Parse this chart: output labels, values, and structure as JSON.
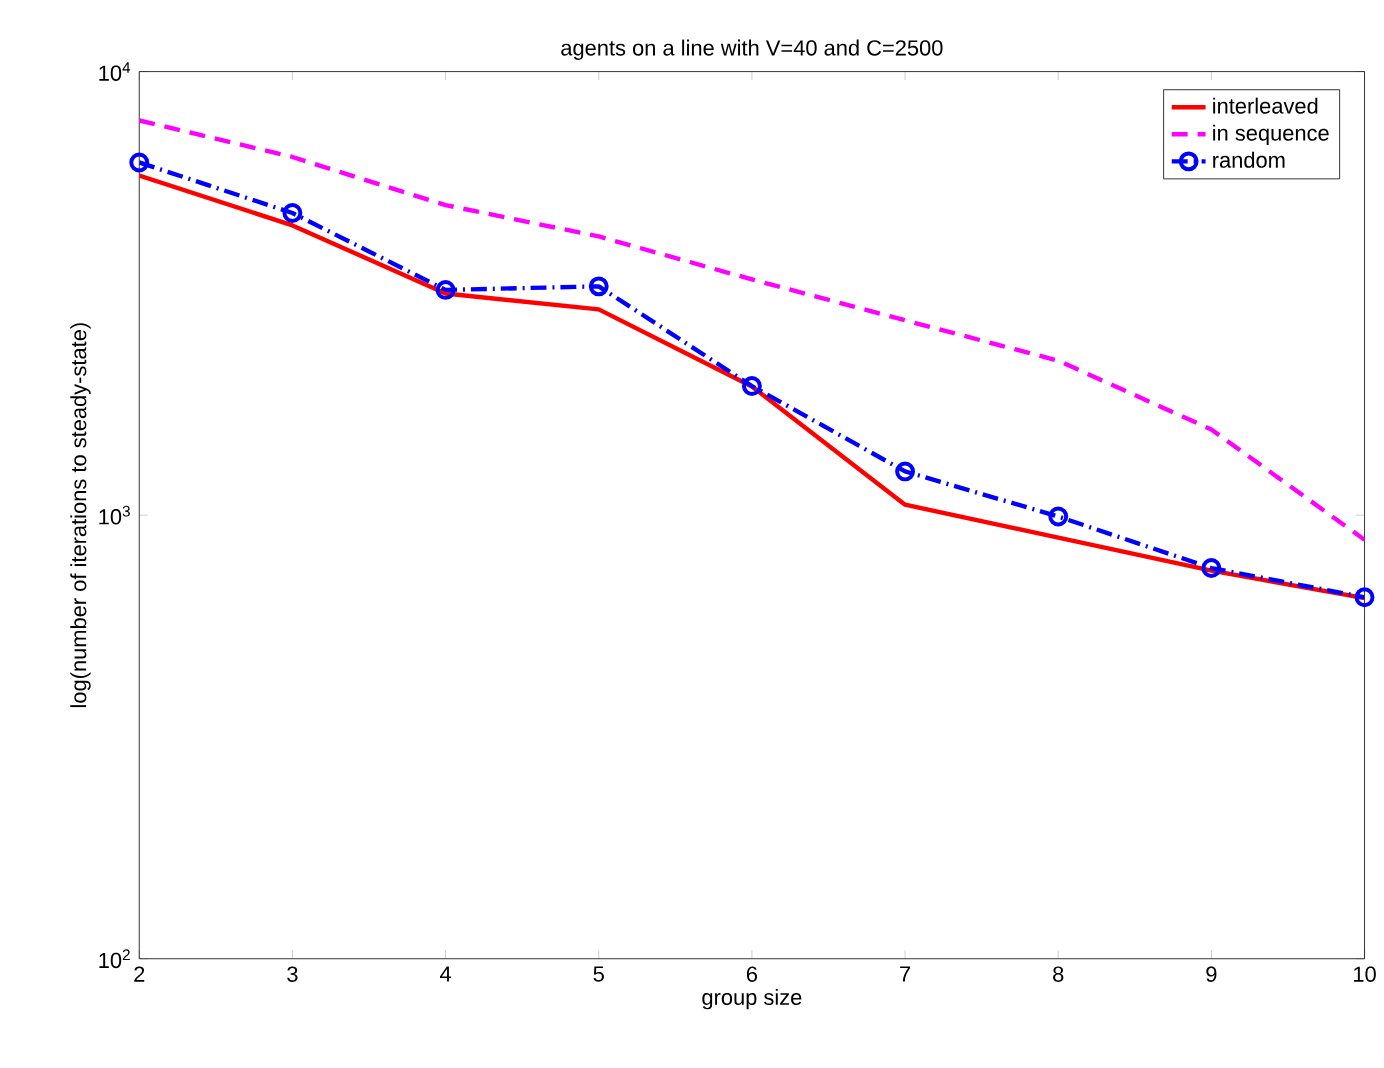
{
  "chart_data": {
    "type": "line",
    "title": "agents on a line with V=40 and C=2500",
    "xlabel": "group size",
    "ylabel": "log(number of iterations to steady-state)",
    "x": [
      2,
      3,
      4,
      5,
      6,
      7,
      8,
      9,
      10
    ],
    "series": [
      {
        "name": "interleaved",
        "color": "#ff0000",
        "line_style": "solid",
        "marker": "none",
        "values": [
          5830,
          4500,
          3160,
          2910,
          1950,
          1056,
          890,
          750,
          650
        ]
      },
      {
        "name": "in sequence",
        "color": "#ff00ff",
        "line_style": "dashed",
        "marker": "none",
        "values": [
          7760,
          6420,
          5000,
          4250,
          3400,
          2750,
          2230,
          1560,
          880
        ]
      },
      {
        "name": "random",
        "color": "#0000ff",
        "line_style": "dashdot",
        "marker": "circle",
        "values": [
          6240,
          4800,
          3220,
          3280,
          1955,
          1255,
          993,
          760,
          653
        ]
      }
    ],
    "log": "y",
    "xlim": [
      2,
      10
    ],
    "ylim": [
      100,
      10000
    ],
    "xticks": [
      2,
      3,
      4,
      5,
      6,
      7,
      8,
      9,
      10
    ],
    "yticks": [
      {
        "value": 100,
        "label": "10$^{2}$"
      },
      {
        "value": 1000,
        "label": "10$^{3}$"
      },
      {
        "value": 10000,
        "label": "10$^{4}$"
      }
    ],
    "grid": false,
    "legend": "top right"
  }
}
